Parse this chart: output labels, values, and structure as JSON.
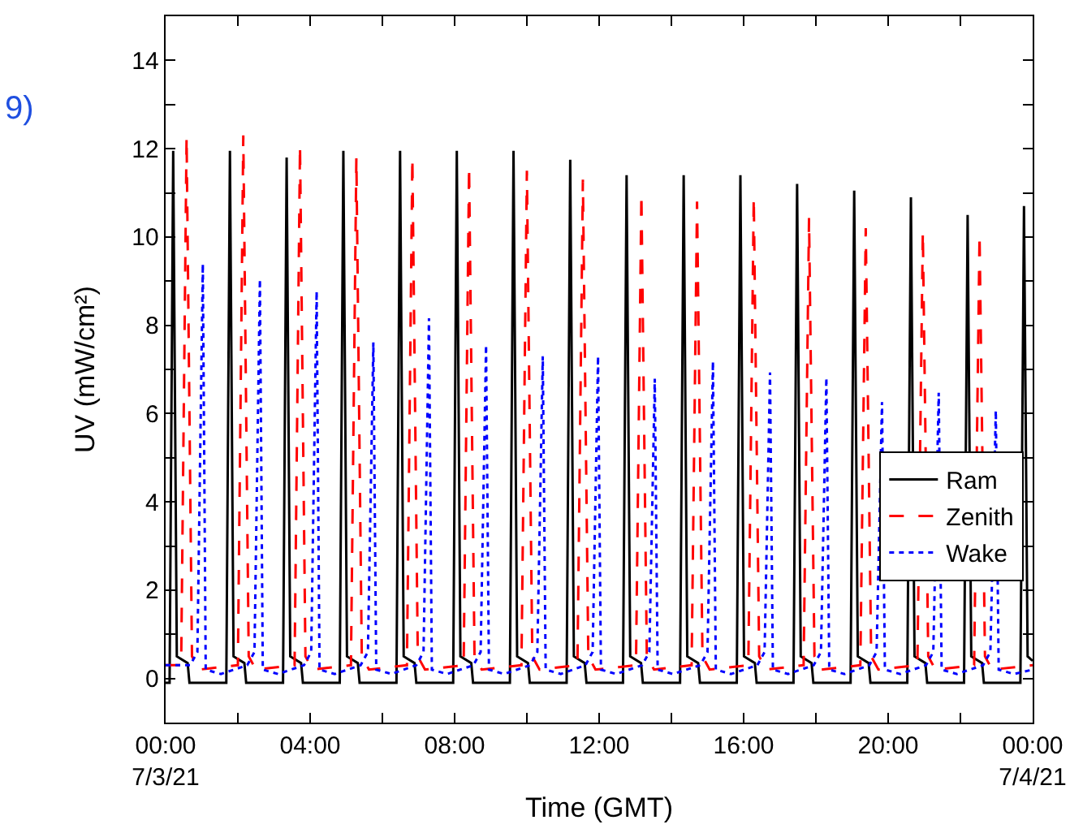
{
  "chart_data": {
    "type": "line",
    "xlabel": "Time (GMT)",
    "ylabel": "UV (mW/cm²)",
    "annotations": [
      "9)"
    ],
    "xlim": [
      0,
      24
    ],
    "xticks": [
      {
        "value": 0,
        "label": "00:00\n7/3/21"
      },
      {
        "value": 2,
        "label": null
      },
      {
        "value": 4,
        "label": "04:00"
      },
      {
        "value": 6,
        "label": null
      },
      {
        "value": 8,
        "label": "08:00"
      },
      {
        "value": 10,
        "label": null
      },
      {
        "value": 12,
        "label": "12:00"
      },
      {
        "value": 14,
        "label": null
      },
      {
        "value": 16,
        "label": "16:00"
      },
      {
        "value": 18,
        "label": null
      },
      {
        "value": 20,
        "label": "20:00"
      },
      {
        "value": 22,
        "label": null
      },
      {
        "value": 24,
        "label": "00:00\n7/4/21"
      }
    ],
    "ylim": [
      -1,
      15
    ],
    "yticks": [
      {
        "value": -1,
        "label": null
      },
      0,
      {
        "value": 1,
        "label": null
      },
      2,
      {
        "value": 3,
        "label": null
      },
      4,
      {
        "value": 5,
        "label": null
      },
      6,
      {
        "value": 7,
        "label": null
      },
      8,
      {
        "value": 9,
        "label": null
      },
      10,
      {
        "value": 11,
        "label": null
      },
      12,
      {
        "value": 13,
        "label": null
      },
      14,
      {
        "value": 15,
        "label": null
      }
    ],
    "grid": false,
    "legend": "bottom right",
    "marker": "none",
    "series": [
      {
        "name": "Ram",
        "color": "#000000",
        "line_style": "solid",
        "x": [
          0,
          0.11,
          0.21,
          0.31,
          0.61,
          0.66,
          1.68,
          1.78,
          1.88,
          2.18,
          2.23,
          3.25,
          3.35,
          3.45,
          3.75,
          3.8,
          4.82,
          4.92,
          5.02,
          5.32,
          5.37,
          6.39,
          6.49,
          6.59,
          6.89,
          6.94,
          7.96,
          8.06,
          8.16,
          8.46,
          8.51,
          9.53,
          9.63,
          9.73,
          10.03,
          10.08,
          11.1,
          11.2,
          11.3,
          11.6,
          11.65,
          12.66,
          12.76,
          12.86,
          13.16,
          13.21,
          14.24,
          14.34,
          14.44,
          14.74,
          14.79,
          15.81,
          15.91,
          16.01,
          16.31,
          16.36,
          17.38,
          17.48,
          17.58,
          17.88,
          17.93,
          18.96,
          19.06,
          19.16,
          19.46,
          19.51,
          20.53,
          20.63,
          20.73,
          21.03,
          21.08,
          22.1,
          22.2,
          22.3,
          22.6,
          22.65,
          23.66,
          23.76,
          23.86,
          24
        ],
        "values": [
          -0.1,
          -0.1,
          11.95,
          0.5,
          0.35,
          -0.1,
          -0.1,
          11.95,
          0.5,
          0.35,
          -0.1,
          -0.1,
          11.8,
          0.5,
          0.35,
          -0.1,
          -0.1,
          11.95,
          0.5,
          0.35,
          -0.1,
          -0.1,
          11.95,
          0.5,
          0.35,
          -0.1,
          -0.1,
          11.95,
          0.5,
          0.35,
          -0.1,
          -0.1,
          11.95,
          0.5,
          0.35,
          -0.1,
          -0.1,
          11.75,
          0.5,
          0.35,
          -0.1,
          -0.1,
          11.4,
          0.5,
          0.35,
          -0.1,
          -0.1,
          11.4,
          0.5,
          0.35,
          -0.1,
          -0.1,
          11.4,
          0.5,
          0.35,
          -0.1,
          -0.1,
          11.2,
          0.5,
          0.35,
          -0.1,
          -0.1,
          11.05,
          0.5,
          0.35,
          -0.1,
          -0.1,
          10.9,
          0.5,
          0.35,
          -0.1,
          -0.1,
          10.5,
          0.5,
          0.35,
          -0.1,
          -0.1,
          10.7,
          0.5,
          0.4
        ]
      },
      {
        "name": "Zenith",
        "color": "#ff0000",
        "line_style": "dashed",
        "x": [
          0,
          0.43,
          0.58,
          0.73,
          0.93,
          2.0,
          2.15,
          2.3,
          2.5,
          3.57,
          3.72,
          3.87,
          4.07,
          5.13,
          5.28,
          5.43,
          5.63,
          6.68,
          6.83,
          6.98,
          7.18,
          8.25,
          8.4,
          8.55,
          8.75,
          9.85,
          10.0,
          10.15,
          10.35,
          11.4,
          11.55,
          11.7,
          11.9,
          13.02,
          13.17,
          13.32,
          13.52,
          14.56,
          14.71,
          14.86,
          15.06,
          16.13,
          16.28,
          16.43,
          16.63,
          17.66,
          17.81,
          17.96,
          18.16,
          19.23,
          19.38,
          19.53,
          19.73,
          20.81,
          20.96,
          21.11,
          21.31,
          22.38,
          22.53,
          22.68,
          22.88,
          24
        ],
        "values": [
          0.3,
          0.3,
          12.27,
          0.5,
          0.2,
          0.3,
          12.3,
          0.5,
          0.2,
          0.3,
          12.08,
          0.5,
          0.2,
          0.3,
          11.8,
          0.5,
          0.2,
          0.3,
          11.8,
          0.5,
          0.2,
          0.3,
          11.6,
          0.5,
          0.2,
          0.3,
          11.5,
          0.5,
          0.2,
          0.3,
          11.3,
          0.5,
          0.2,
          0.3,
          10.98,
          0.5,
          0.2,
          0.3,
          10.8,
          0.5,
          0.2,
          0.3,
          10.9,
          0.5,
          0.2,
          0.3,
          10.43,
          0.5,
          0.2,
          0.3,
          10.2,
          0.5,
          0.2,
          0.3,
          10.12,
          0.5,
          0.2,
          0.3,
          10.06,
          0.5,
          0.2,
          0.3
        ]
      },
      {
        "name": "Wake",
        "color": "#0000ff",
        "line_style": "dotted",
        "x": [
          0,
          0.68,
          0.88,
          1.03,
          1.11,
          1.53,
          2.26,
          2.46,
          2.61,
          2.69,
          3.11,
          3.83,
          4.03,
          4.18,
          4.26,
          4.68,
          5.4,
          5.6,
          5.75,
          5.83,
          6.25,
          6.94,
          7.14,
          7.29,
          7.37,
          7.79,
          8.52,
          8.72,
          8.87,
          8.95,
          9.37,
          10.09,
          10.29,
          10.44,
          10.52,
          10.94,
          11.62,
          11.82,
          11.97,
          12.05,
          12.47,
          13.19,
          13.39,
          13.54,
          13.62,
          14.04,
          14.8,
          15.0,
          15.15,
          15.23,
          15.65,
          16.38,
          16.58,
          16.73,
          16.81,
          17.23,
          17.94,
          18.14,
          18.29,
          18.37,
          18.79,
          19.48,
          19.68,
          19.83,
          19.91,
          20.33,
          21.05,
          21.25,
          21.4,
          21.48,
          21.9,
          22.63,
          22.83,
          22.98,
          23.06,
          23.48,
          24
        ],
        "values": [
          0.3,
          0.3,
          0.6,
          9.39,
          0.2,
          0.1,
          0.3,
          0.6,
          9.04,
          0.2,
          0.1,
          0.3,
          0.6,
          8.77,
          0.2,
          0.1,
          0.3,
          0.6,
          7.61,
          0.2,
          0.1,
          0.3,
          0.6,
          8.16,
          0.2,
          0.1,
          0.3,
          0.6,
          7.55,
          0.2,
          0.1,
          0.3,
          0.6,
          7.3,
          0.2,
          0.1,
          0.3,
          0.6,
          7.3,
          0.2,
          0.1,
          0.3,
          0.6,
          6.79,
          0.2,
          0.1,
          0.3,
          0.6,
          7.18,
          0.2,
          0.1,
          0.3,
          0.6,
          6.93,
          0.2,
          0.1,
          0.3,
          0.6,
          6.81,
          0.2,
          0.1,
          0.3,
          0.6,
          6.26,
          0.2,
          0.1,
          0.3,
          0.6,
          6.47,
          0.2,
          0.1,
          0.3,
          0.6,
          6.07,
          0.2,
          0.1,
          0.2
        ]
      }
    ]
  }
}
